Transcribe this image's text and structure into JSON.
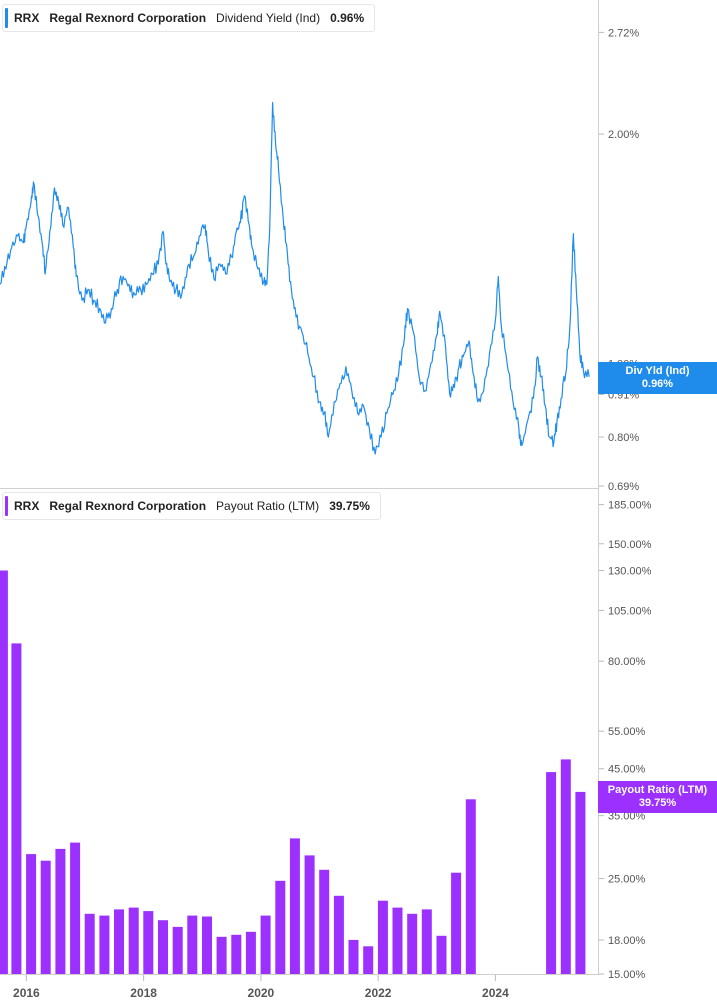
{
  "colors": {
    "yield": "#1f8ceb",
    "payout": "#9b30ff"
  },
  "top_legend": {
    "ticker": "RRX",
    "company": "Regal Rexnord Corporation",
    "metric": "Dividend Yield (Ind)",
    "value": "0.96%"
  },
  "bottom_legend": {
    "ticker": "RRX",
    "company": "Regal Rexnord Corporation",
    "metric": "Payout Ratio (LTM)",
    "value": "39.75%"
  },
  "top_badge": {
    "line1": "Div Yld (Ind)",
    "line2": "0.96%"
  },
  "bottom_badge": {
    "line1": "Payout Ratio (LTM)",
    "line2": "39.75%"
  },
  "chart_data": [
    {
      "type": "line",
      "scale": "log",
      "ylim": [
        0.69,
        3.0
      ],
      "yticks": [
        {
          "value": 2.72,
          "label": "2.72%"
        },
        {
          "value": 2.0,
          "label": "2.00%"
        },
        {
          "value": 1.0,
          "label": "1.00%"
        },
        {
          "value": 0.91,
          "label": "0.91%"
        },
        {
          "value": 0.8,
          "label": "0.80%"
        },
        {
          "value": 0.69,
          "label": "0.69%"
        }
      ],
      "xlim": [
        2015.55,
        2025.75
      ],
      "series": [
        {
          "values": [
            [
              2015.55,
              1.27
            ],
            [
              2015.65,
              1.33
            ],
            [
              2015.75,
              1.42
            ],
            [
              2015.85,
              1.47
            ],
            [
              2015.95,
              1.44
            ],
            [
              2016.0,
              1.52
            ],
            [
              2016.08,
              1.63
            ],
            [
              2016.12,
              1.73
            ],
            [
              2016.2,
              1.56
            ],
            [
              2016.28,
              1.42
            ],
            [
              2016.32,
              1.31
            ],
            [
              2016.4,
              1.49
            ],
            [
              2016.48,
              1.7
            ],
            [
              2016.55,
              1.63
            ],
            [
              2016.62,
              1.52
            ],
            [
              2016.72,
              1.6
            ],
            [
              2016.8,
              1.42
            ],
            [
              2016.85,
              1.3
            ],
            [
              2016.95,
              1.21
            ],
            [
              2017.05,
              1.25
            ],
            [
              2017.15,
              1.21
            ],
            [
              2017.25,
              1.18
            ],
            [
              2017.35,
              1.13
            ],
            [
              2017.45,
              1.18
            ],
            [
              2017.55,
              1.25
            ],
            [
              2017.65,
              1.3
            ],
            [
              2017.75,
              1.27
            ],
            [
              2017.85,
              1.23
            ],
            [
              2017.95,
              1.25
            ],
            [
              2018.05,
              1.27
            ],
            [
              2018.15,
              1.31
            ],
            [
              2018.25,
              1.35
            ],
            [
              2018.33,
              1.49
            ],
            [
              2018.38,
              1.35
            ],
            [
              2018.45,
              1.28
            ],
            [
              2018.55,
              1.25
            ],
            [
              2018.65,
              1.23
            ],
            [
              2018.75,
              1.34
            ],
            [
              2018.85,
              1.38
            ],
            [
              2018.95,
              1.47
            ],
            [
              2019.05,
              1.52
            ],
            [
              2019.1,
              1.41
            ],
            [
              2019.2,
              1.29
            ],
            [
              2019.3,
              1.35
            ],
            [
              2019.4,
              1.31
            ],
            [
              2019.5,
              1.38
            ],
            [
              2019.58,
              1.49
            ],
            [
              2019.65,
              1.53
            ],
            [
              2019.72,
              1.66
            ],
            [
              2019.8,
              1.52
            ],
            [
              2019.85,
              1.42
            ],
            [
              2019.95,
              1.33
            ],
            [
              2020.05,
              1.28
            ],
            [
              2020.1,
              1.27
            ],
            [
              2020.15,
              1.5
            ],
            [
              2020.2,
              2.2
            ],
            [
              2020.25,
              1.95
            ],
            [
              2020.3,
              1.8
            ],
            [
              2020.38,
              1.55
            ],
            [
              2020.45,
              1.4
            ],
            [
              2020.52,
              1.25
            ],
            [
              2020.6,
              1.15
            ],
            [
              2020.7,
              1.1
            ],
            [
              2020.8,
              1.03
            ],
            [
              2020.9,
              0.96
            ],
            [
              2021.0,
              0.89
            ],
            [
              2021.08,
              0.86
            ],
            [
              2021.15,
              0.8
            ],
            [
              2021.25,
              0.89
            ],
            [
              2021.35,
              0.94
            ],
            [
              2021.45,
              0.99
            ],
            [
              2021.55,
              0.92
            ],
            [
              2021.65,
              0.86
            ],
            [
              2021.75,
              0.88
            ],
            [
              2021.85,
              0.82
            ],
            [
              2021.95,
              0.76
            ],
            [
              2022.05,
              0.8
            ],
            [
              2022.15,
              0.86
            ],
            [
              2022.25,
              0.91
            ],
            [
              2022.35,
              0.97
            ],
            [
              2022.45,
              1.08
            ],
            [
              2022.5,
              1.18
            ],
            [
              2022.6,
              1.1
            ],
            [
              2022.7,
              0.96
            ],
            [
              2022.8,
              0.92
            ],
            [
              2022.9,
              1.0
            ],
            [
              2023.0,
              1.09
            ],
            [
              2023.05,
              1.17
            ],
            [
              2023.15,
              1.05
            ],
            [
              2023.22,
              0.91
            ],
            [
              2023.3,
              0.93
            ],
            [
              2023.38,
              0.99
            ],
            [
              2023.45,
              1.02
            ],
            [
              2023.55,
              1.07
            ],
            [
              2023.62,
              0.97
            ],
            [
              2023.7,
              0.89
            ],
            [
              2023.8,
              0.92
            ],
            [
              2023.9,
              1.03
            ],
            [
              2024.0,
              1.14
            ],
            [
              2024.05,
              1.3
            ],
            [
              2024.1,
              1.12
            ],
            [
              2024.2,
              1.0
            ],
            [
              2024.3,
              0.89
            ],
            [
              2024.4,
              0.82
            ],
            [
              2024.45,
              0.78
            ],
            [
              2024.55,
              0.84
            ],
            [
              2024.65,
              0.9
            ],
            [
              2024.72,
              1.02
            ],
            [
              2024.78,
              0.96
            ],
            [
              2024.85,
              0.88
            ],
            [
              2024.92,
              0.8
            ],
            [
              2025.0,
              0.79
            ],
            [
              2025.05,
              0.84
            ],
            [
              2025.12,
              0.9
            ],
            [
              2025.2,
              0.97
            ],
            [
              2025.27,
              1.12
            ],
            [
              2025.33,
              1.48
            ],
            [
              2025.38,
              1.25
            ],
            [
              2025.44,
              1.03
            ],
            [
              2025.5,
              0.98
            ],
            [
              2025.6,
              0.96
            ]
          ]
        }
      ]
    },
    {
      "type": "bar",
      "scale": "log",
      "ylim": [
        15.0,
        200.0
      ],
      "yticks": [
        {
          "value": 185,
          "label": "185.00%"
        },
        {
          "value": 150,
          "label": "150.00%"
        },
        {
          "value": 130,
          "label": "130.00%"
        },
        {
          "value": 105,
          "label": "105.00%"
        },
        {
          "value": 80,
          "label": "80.00%"
        },
        {
          "value": 55,
          "label": "55.00%"
        },
        {
          "value": 45,
          "label": "45.00%"
        },
        {
          "value": 35,
          "label": "35.00%"
        },
        {
          "value": 25,
          "label": "25.00%"
        },
        {
          "value": 18,
          "label": "18.00%"
        },
        {
          "value": 15,
          "label": "15.00%"
        }
      ],
      "xlim": [
        2015.55,
        2025.75
      ],
      "xticks": [
        {
          "value": 2016,
          "label": "2016"
        },
        {
          "value": 2018,
          "label": "2018"
        },
        {
          "value": 2020,
          "label": "2020"
        },
        {
          "value": 2022,
          "label": "2022"
        },
        {
          "value": 2024,
          "label": "2024"
        }
      ],
      "bar_width": 0.17,
      "series": [
        {
          "values": [
            [
              2015.6,
              130.0
            ],
            [
              2015.83,
              88.0
            ],
            [
              2016.08,
              28.5
            ],
            [
              2016.33,
              27.5
            ],
            [
              2016.58,
              29.3
            ],
            [
              2016.83,
              30.3
            ],
            [
              2017.08,
              20.7
            ],
            [
              2017.33,
              20.5
            ],
            [
              2017.58,
              21.2
            ],
            [
              2017.83,
              21.4
            ],
            [
              2018.08,
              21.0
            ],
            [
              2018.33,
              20.0
            ],
            [
              2018.58,
              19.3
            ],
            [
              2018.83,
              20.5
            ],
            [
              2019.08,
              20.4
            ],
            [
              2019.33,
              18.3
            ],
            [
              2019.58,
              18.5
            ],
            [
              2019.83,
              18.8
            ],
            [
              2020.08,
              20.5
            ],
            [
              2020.33,
              24.7
            ],
            [
              2020.58,
              31.0
            ],
            [
              2020.83,
              28.3
            ],
            [
              2021.08,
              26.2
            ],
            [
              2021.33,
              22.8
            ],
            [
              2021.58,
              18.0
            ],
            [
              2021.83,
              17.4
            ],
            [
              2022.08,
              22.2
            ],
            [
              2022.33,
              21.4
            ],
            [
              2022.58,
              20.7
            ],
            [
              2022.83,
              21.2
            ],
            [
              2023.08,
              18.4
            ],
            [
              2023.33,
              25.8
            ],
            [
              2023.58,
              38.2
            ],
            [
              2024.95,
              44.2
            ],
            [
              2025.2,
              47.3
            ],
            [
              2025.45,
              39.75
            ]
          ]
        }
      ]
    }
  ]
}
